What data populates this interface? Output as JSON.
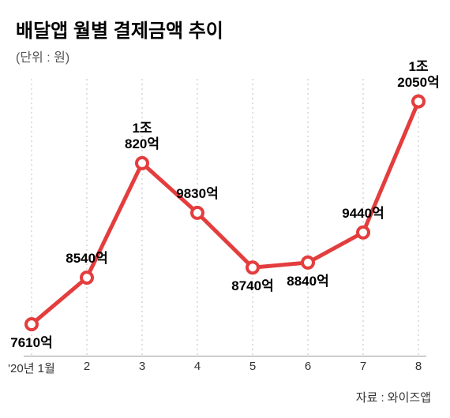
{
  "title": "배달앱 월별 결제금액 추이",
  "unit": "(단위 : 원)",
  "source_prefix": "자료 : ",
  "source_name": "와이즈앱",
  "chart": {
    "type": "line",
    "line_color": "#e43d3d",
    "line_width": 5,
    "marker_fill": "#ffffff",
    "marker_stroke": "#e43d3d",
    "marker_stroke_width": 4,
    "marker_radius": 7,
    "gridline_color": "#bfbfbf",
    "gridline_dash": "2,4",
    "baseline_color": "#999999",
    "background_color": "#ffffff",
    "x_labels": [
      "'20년 1월",
      "2",
      "3",
      "4",
      "5",
      "6",
      "7",
      "8"
    ],
    "values": [
      7610,
      8540,
      10820,
      9830,
      8740,
      8840,
      9440,
      12050
    ],
    "display_labels": [
      "7610억",
      "8540억",
      "1조\n820억",
      "9830억",
      "8740억",
      "8840억",
      "9440억",
      "1조\n2050억"
    ],
    "label_positions": [
      "below",
      "above",
      "above",
      "above",
      "below",
      "below",
      "above",
      "above"
    ],
    "y_min": 7000,
    "y_max": 12500,
    "title_fontsize": 24,
    "unit_fontsize": 16,
    "xlabel_fontsize": 15,
    "datalabel_fontsize": 17,
    "source_fontsize": 15
  }
}
